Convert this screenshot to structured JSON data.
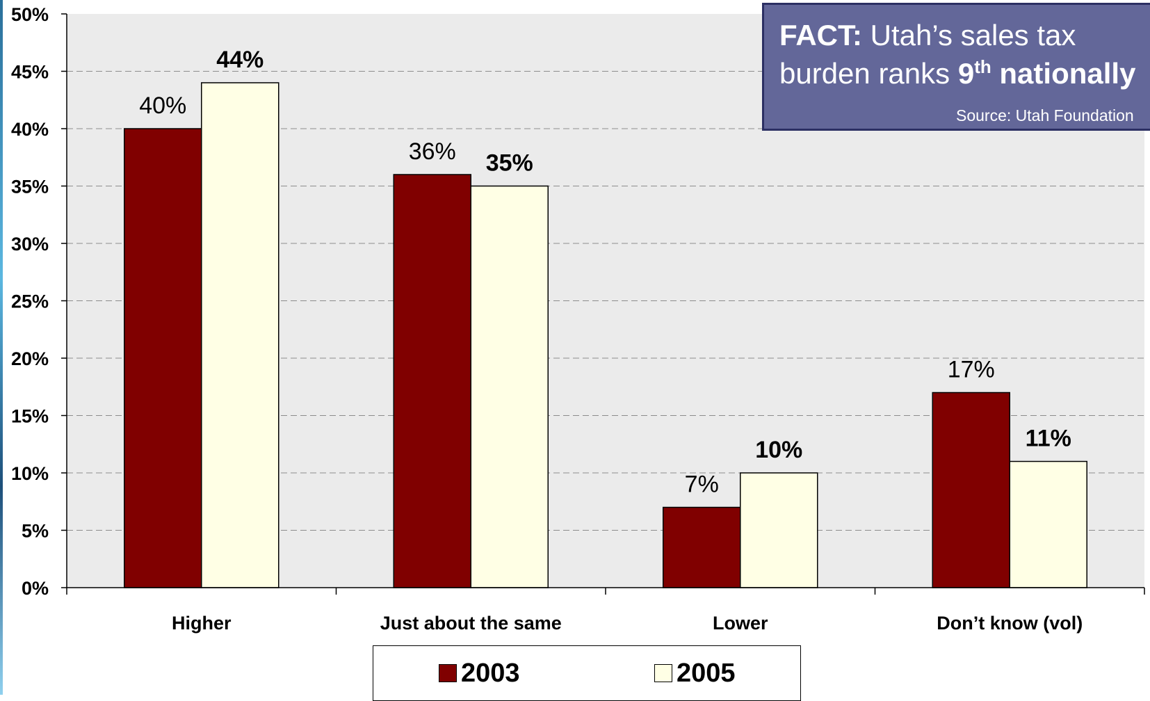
{
  "chart_data": {
    "type": "bar",
    "categories": [
      "Higher",
      "Just about the same",
      "Lower",
      "Don’t know (vol)"
    ],
    "series": [
      {
        "name": "2003",
        "values": [
          40,
          36,
          7,
          17
        ],
        "color": "#800000",
        "labels": [
          "40%",
          "36%",
          "7%",
          "17%"
        ]
      },
      {
        "name": "2005",
        "values": [
          44,
          35,
          10,
          11
        ],
        "color": "#ffffe5",
        "labels": [
          "44%",
          "35%",
          "10%",
          "11%"
        ]
      }
    ],
    "ylim": [
      0,
      50
    ],
    "yticks": [
      "0%",
      "5%",
      "10%",
      "15%",
      "20%",
      "25%",
      "30%",
      "35%",
      "40%",
      "45%",
      "50%"
    ],
    "grid": true,
    "legend_position": "bottom",
    "plot_background": "#ebebeb"
  },
  "fact_box": {
    "fact_label": "FACT:",
    "line1_text": " Utah’s sales tax",
    "line2_prefix": "burden ranks ",
    "rank": "9",
    "rank_suffix": "th",
    "line2_emphasis": " nationally",
    "source": "Source: Utah Foundation"
  }
}
